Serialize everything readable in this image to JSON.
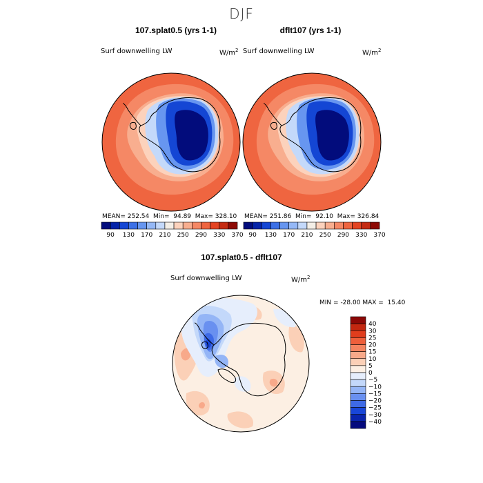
{
  "figure": {
    "title": "DJF",
    "variable": "Surf downwelling LW",
    "units": "W/m",
    "units_exp": "2"
  },
  "colors": {
    "abs": [
      "#020c7c",
      "#0523a8",
      "#1446d4",
      "#3c70e6",
      "#6796f0",
      "#95b8f6",
      "#c4d9fa",
      "#f3eee6",
      "#fcd2bc",
      "#f8ae8f",
      "#f58865",
      "#ef6540",
      "#e44422",
      "#c52b12",
      "#8d0a05"
    ],
    "diff": [
      "#050a7e",
      "#0a24ad",
      "#1946d8",
      "#3e6ae6",
      "#6990f0",
      "#94b5f6",
      "#c3d8fa",
      "#e6eefc",
      "#fcefe3",
      "#fbd0b7",
      "#f8a98a",
      "#f48460",
      "#ee5f3b",
      "#e03d1d",
      "#c32710",
      "#8b0806"
    ]
  },
  "chart_data": [
    {
      "type": "polar_contour_map",
      "panel": "model-case",
      "title": "107.splat0.5 (yrs 1-1)",
      "variable": "Surf downwelling LW",
      "units": "W/m2",
      "stats": {
        "mean_label": "MEAN=",
        "mean": "252.54",
        "min_label": "Min=",
        "min": "94.89",
        "max_label": "Max=",
        "max": "328.10"
      },
      "colorbar": {
        "tick_labels": [
          "90",
          "130",
          "170",
          "210",
          "250",
          "290",
          "330",
          "370"
        ]
      }
    },
    {
      "type": "polar_contour_map",
      "panel": "control-case",
      "title": "dflt107 (yrs 1-1)",
      "variable": "Surf downwelling LW",
      "units": "W/m2",
      "stats": {
        "mean_label": "MEAN=",
        "mean": "251.86",
        "min_label": "Min=",
        "min": "92.10",
        "max_label": "Max=",
        "max": "326.84"
      },
      "colorbar": {
        "tick_labels": [
          "90",
          "130",
          "170",
          "210",
          "250",
          "290",
          "330",
          "370"
        ]
      }
    },
    {
      "type": "polar_contour_map",
      "panel": "difference",
      "title": "107.splat0.5 - dflt107",
      "variable": "Surf downwelling LW",
      "units": "W/m2",
      "stats": {
        "min_label": "MIN =",
        "min": "-28.00",
        "max_label": "MAX =",
        "max": "15.40"
      },
      "colorbar": {
        "levels": [
          "40",
          "30",
          "25",
          "20",
          "15",
          "10",
          "5",
          "0",
          "-5",
          "-10",
          "-15",
          "-20",
          "-25",
          "-30",
          "-40"
        ]
      }
    }
  ]
}
